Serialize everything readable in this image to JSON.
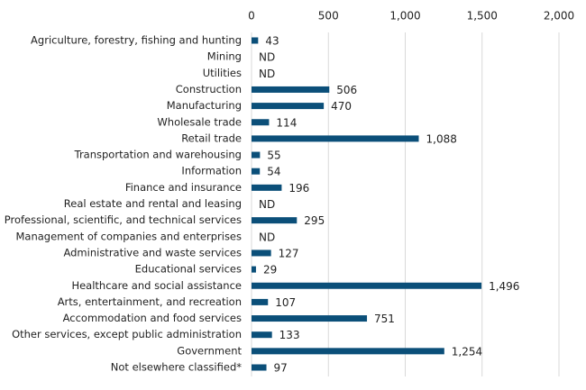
{
  "chart_data": {
    "type": "hbar",
    "categories": [
      "Agriculture, forestry, fishing and hunting",
      "Mining",
      "Utilities",
      "Construction",
      "Manufacturing",
      "Wholesale trade",
      "Retail trade",
      "Transportation and warehousing",
      "Information",
      "Finance and insurance",
      "Real estate and rental and leasing",
      "Professional, scientific, and technical services",
      "Management of companies and enterprises",
      "Administrative and waste services",
      "Educational services",
      "Healthcare and social assistance",
      "Arts, entertainment, and recreation",
      "Accommodation and food services",
      "Other services, except public administration",
      "Government",
      "Not elsewhere classified*"
    ],
    "values": [
      43,
      null,
      null,
      506,
      470,
      114,
      1088,
      55,
      54,
      196,
      null,
      295,
      null,
      127,
      29,
      1496,
      107,
      751,
      133,
      1254,
      97
    ],
    "value_labels": [
      "43",
      "ND",
      "ND",
      "506",
      "470",
      "114",
      "1,088",
      "55",
      "54",
      "196",
      "ND",
      "295",
      "ND",
      "127",
      "29",
      "1,496",
      "107",
      "751",
      "133",
      "1,254",
      "97"
    ],
    "color": "#0b4f79",
    "xlim": [
      0,
      2000
    ],
    "xticks": [
      0,
      500,
      {
        "value": 1000,
        "label": "1,000"
      },
      {
        "value": 1500,
        "label": "1,500"
      },
      {
        "value": 2000,
        "label": "2,000"
      }
    ],
    "grid": true
  }
}
